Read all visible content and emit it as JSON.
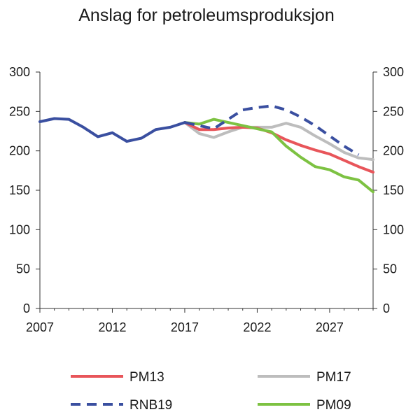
{
  "chart_data": {
    "type": "line",
    "title": "Anslag for petroleumsproduksjon",
    "xlabel": "",
    "ylabel": "",
    "xlim": [
      2007,
      2030
    ],
    "ylim": [
      0,
      300
    ],
    "x_ticks": [
      "2007",
      "2012",
      "2017",
      "2022",
      "2027"
    ],
    "y_ticks": [
      "0",
      "50",
      "100",
      "150",
      "200",
      "250",
      "300"
    ],
    "grid": false,
    "legend_position": "bottom",
    "series": [
      {
        "name": "RNB19",
        "color": "#3a4fa0",
        "style": "solid-then-dashed",
        "x": [
          2007,
          2008,
          2009,
          2010,
          2011,
          2012,
          2013,
          2014,
          2015,
          2016,
          2017,
          2018,
          2019,
          2020,
          2021,
          2022,
          2023,
          2024,
          2025,
          2026,
          2027,
          2028,
          2029,
          2030
        ],
        "values": [
          237,
          241,
          240,
          230,
          218,
          223,
          212,
          216,
          227,
          230,
          236,
          232,
          228,
          240,
          252,
          255,
          257,
          252,
          243,
          232,
          219,
          206,
          195,
          null
        ]
      },
      {
        "name": "PM13",
        "color": "#e8555a",
        "x": [
          2017,
          2018,
          2019,
          2020,
          2021,
          2022,
          2023,
          2024,
          2025,
          2026,
          2027,
          2028,
          2029,
          2030
        ],
        "values": [
          236,
          227,
          227,
          229,
          230,
          229,
          223,
          214,
          207,
          201,
          196,
          188,
          180,
          173
        ]
      },
      {
        "name": "PM17",
        "color": "#bdbdbd",
        "x": [
          2017,
          2018,
          2019,
          2020,
          2021,
          2022,
          2023,
          2024,
          2025,
          2026,
          2027,
          2028,
          2029,
          2030
        ],
        "values": [
          236,
          222,
          217,
          224,
          230,
          230,
          230,
          235,
          230,
          219,
          209,
          198,
          191,
          189
        ]
      },
      {
        "name": "PM09",
        "color": "#7dc242",
        "x": [
          2017,
          2018,
          2019,
          2020,
          2021,
          2022,
          2023,
          2024,
          2025,
          2026,
          2027,
          2028,
          2029,
          2030
        ],
        "values": [
          236,
          234,
          240,
          236,
          232,
          228,
          224,
          206,
          192,
          180,
          176,
          167,
          163,
          148
        ]
      }
    ],
    "legend": [
      {
        "label": "PM13",
        "color": "#e8555a",
        "dashed": false
      },
      {
        "label": "PM17",
        "color": "#bdbdbd",
        "dashed": false
      },
      {
        "label": "RNB19",
        "color": "#3a4fa0",
        "dashed": true
      },
      {
        "label": "PM09",
        "color": "#7dc242",
        "dashed": false
      }
    ]
  }
}
